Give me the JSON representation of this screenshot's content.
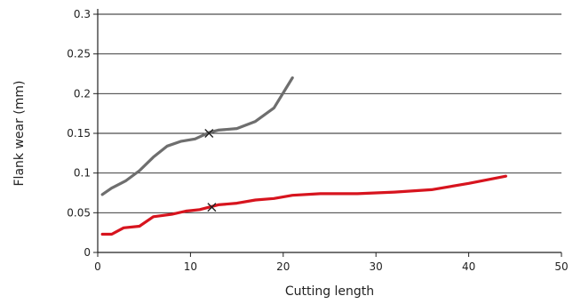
{
  "chart_data": {
    "type": "line",
    "title": "",
    "xlabel": "Cutting length",
    "ylabel": "Flank wear (mm)",
    "xlim": [
      0,
      50
    ],
    "ylim": [
      0,
      0.3
    ],
    "x_ticks": [
      0,
      10,
      20,
      30,
      40,
      50
    ],
    "x_tick_labels": [
      "0",
      "10",
      "20",
      "30",
      "40",
      "50"
    ],
    "y_ticks": [
      0,
      0.05,
      0.1,
      0.15,
      0.2,
      0.25,
      0.3
    ],
    "y_tick_labels": [
      "0",
      "0.05",
      "0.1",
      "0.15",
      "0.2",
      "0.25",
      "0.3"
    ],
    "grid": "horizontal",
    "legend": "none",
    "series": [
      {
        "color": "#6e6e6e",
        "points": [
          [
            0.5,
            0.073
          ],
          [
            1.5,
            0.081
          ],
          [
            3,
            0.09
          ],
          [
            4.5,
            0.103
          ],
          [
            6,
            0.12
          ],
          [
            7.5,
            0.134
          ],
          [
            9,
            0.14
          ],
          [
            10.5,
            0.143
          ],
          [
            12,
            0.151
          ],
          [
            13,
            0.154
          ],
          [
            15,
            0.156
          ],
          [
            17,
            0.165
          ],
          [
            19,
            0.182
          ],
          [
            21,
            0.22
          ]
        ],
        "marker": {
          "x": 12,
          "y": 0.15,
          "symbol": "x"
        }
      },
      {
        "color": "#d7141e",
        "points": [
          [
            0.5,
            0.023
          ],
          [
            1.5,
            0.023
          ],
          [
            2.8,
            0.031
          ],
          [
            4.5,
            0.033
          ],
          [
            6,
            0.045
          ],
          [
            8,
            0.048
          ],
          [
            9.5,
            0.052
          ],
          [
            11,
            0.054
          ],
          [
            13,
            0.06
          ],
          [
            15,
            0.062
          ],
          [
            17,
            0.066
          ],
          [
            19,
            0.068
          ],
          [
            21,
            0.072
          ],
          [
            24,
            0.074
          ],
          [
            28,
            0.074
          ],
          [
            32,
            0.076
          ],
          [
            36,
            0.079
          ],
          [
            40,
            0.087
          ],
          [
            44,
            0.096
          ]
        ],
        "marker": {
          "x": 12.3,
          "y": 0.057,
          "symbol": "x"
        }
      }
    ]
  }
}
